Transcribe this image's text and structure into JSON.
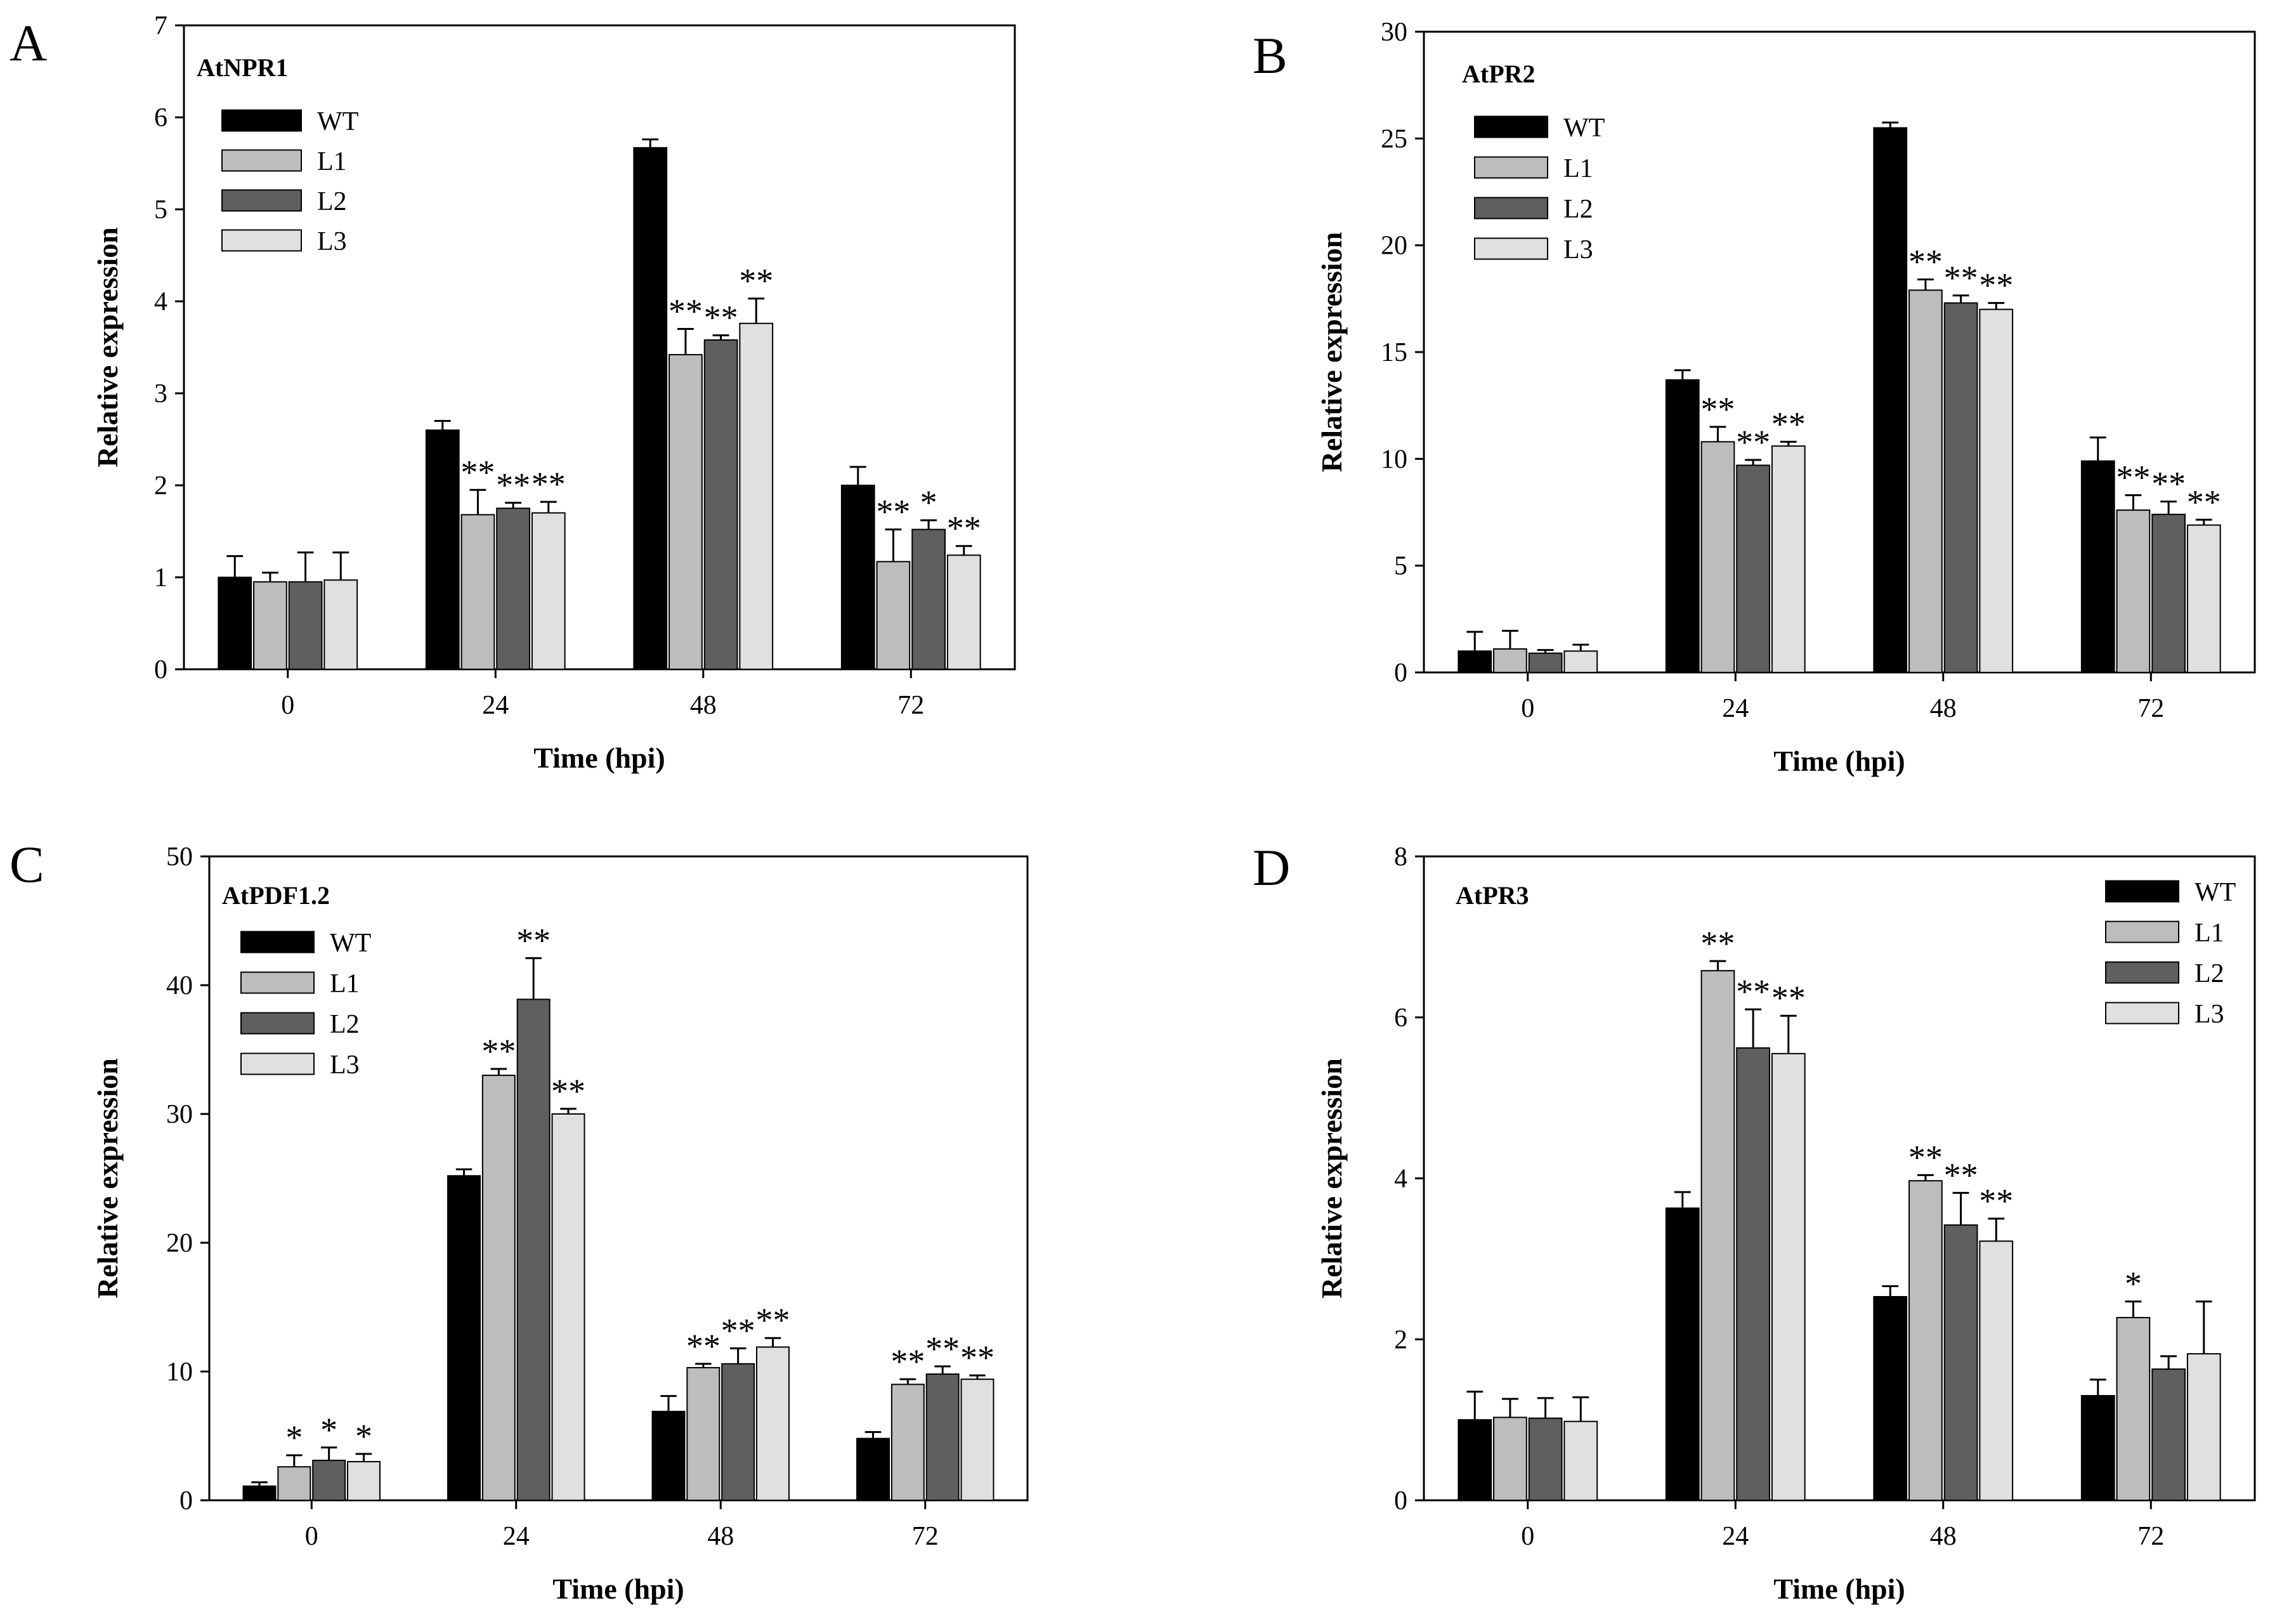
{
  "figure": {
    "panel_letters": [
      "A",
      "B",
      "C",
      "D"
    ]
  },
  "chart_data": [
    {
      "type": "bar",
      "panel": "A",
      "title": "AtNPR1",
      "xlabel": "Time (hpi)",
      "ylabel": "Relative expression",
      "categories": [
        "0",
        "24",
        "48",
        "72"
      ],
      "ylim": [
        0,
        7
      ],
      "yticks": [
        "0",
        "1",
        "2",
        "3",
        "4",
        "5",
        "6",
        "7"
      ],
      "legend_position": "top-left",
      "series": [
        {
          "name": "WT",
          "color": "#000000",
          "values": [
            1.0,
            2.6,
            5.67,
            2.0
          ],
          "errors": [
            0.23,
            0.1,
            0.09,
            0.2
          ],
          "sig": [
            "",
            "",
            "",
            ""
          ]
        },
        {
          "name": "L1",
          "color": "#bdbdbd",
          "values": [
            0.95,
            1.68,
            3.42,
            1.17
          ],
          "errors": [
            0.1,
            0.27,
            0.28,
            0.35
          ],
          "sig": [
            "",
            "**",
            "**",
            "**"
          ]
        },
        {
          "name": "L2",
          "color": "#5f5f5f",
          "values": [
            0.95,
            1.75,
            3.58,
            1.52
          ],
          "errors": [
            0.32,
            0.06,
            0.05,
            0.1
          ],
          "sig": [
            "",
            "**",
            "**",
            "*"
          ]
        },
        {
          "name": "L3",
          "color": "#e0e0e0",
          "values": [
            0.97,
            1.7,
            3.76,
            1.24
          ],
          "errors": [
            0.3,
            0.12,
            0.27,
            0.1
          ],
          "sig": [
            "",
            "**",
            "**",
            "**"
          ]
        }
      ]
    },
    {
      "type": "bar",
      "panel": "B",
      "title": "AtPR2",
      "xlabel": "Time (hpi)",
      "ylabel": "Relative expression",
      "categories": [
        "0",
        "24",
        "48",
        "72"
      ],
      "ylim": [
        0,
        30
      ],
      "yticks": [
        "0",
        "5",
        "10",
        "15",
        "20",
        "25",
        "30"
      ],
      "legend_position": "top-left",
      "series": [
        {
          "name": "WT",
          "color": "#000000",
          "values": [
            1.0,
            13.7,
            25.5,
            9.9
          ],
          "errors": [
            0.9,
            0.45,
            0.25,
            1.1
          ],
          "sig": [
            "",
            "",
            "",
            ""
          ]
        },
        {
          "name": "L1",
          "color": "#bdbdbd",
          "values": [
            1.1,
            10.8,
            17.9,
            7.6
          ],
          "errors": [
            0.85,
            0.7,
            0.5,
            0.7
          ],
          "sig": [
            "",
            "**",
            "**",
            "**"
          ]
        },
        {
          "name": "L2",
          "color": "#5f5f5f",
          "values": [
            0.9,
            9.7,
            17.3,
            7.4
          ],
          "errors": [
            0.15,
            0.25,
            0.35,
            0.6
          ],
          "sig": [
            "",
            "**",
            "**",
            "**"
          ]
        },
        {
          "name": "L3",
          "color": "#e0e0e0",
          "values": [
            1.0,
            10.6,
            17.0,
            6.9
          ],
          "errors": [
            0.3,
            0.2,
            0.3,
            0.25
          ],
          "sig": [
            "",
            "**",
            "**",
            "**"
          ]
        }
      ]
    },
    {
      "type": "bar",
      "panel": "C",
      "title": "AtPDF1.2",
      "xlabel": "Time (hpi)",
      "ylabel": "Relative expression",
      "categories": [
        "0",
        "24",
        "48",
        "72"
      ],
      "ylim": [
        0,
        50
      ],
      "yticks": [
        "0",
        "10",
        "20",
        "30",
        "40",
        "50"
      ],
      "legend_position": "top-left",
      "series": [
        {
          "name": "WT",
          "color": "#000000",
          "values": [
            1.1,
            25.2,
            6.9,
            4.8
          ],
          "errors": [
            0.3,
            0.5,
            1.2,
            0.5
          ],
          "sig": [
            "",
            "",
            "",
            ""
          ]
        },
        {
          "name": "L1",
          "color": "#bdbdbd",
          "values": [
            2.6,
            33.0,
            10.3,
            9.0
          ],
          "errors": [
            0.9,
            0.5,
            0.3,
            0.4
          ],
          "sig": [
            "*",
            "**",
            "**",
            "**"
          ]
        },
        {
          "name": "L2",
          "color": "#5f5f5f",
          "values": [
            3.1,
            38.9,
            10.6,
            9.8
          ],
          "errors": [
            1.0,
            3.2,
            1.2,
            0.6
          ],
          "sig": [
            "*",
            "**",
            "**",
            "**"
          ]
        },
        {
          "name": "L3",
          "color": "#e0e0e0",
          "values": [
            3.0,
            30.0,
            11.9,
            9.4
          ],
          "errors": [
            0.6,
            0.4,
            0.7,
            0.3
          ],
          "sig": [
            "*",
            "**",
            "**",
            "**"
          ]
        }
      ]
    },
    {
      "type": "bar",
      "panel": "D",
      "title": "AtPR3",
      "xlabel": "Time (hpi)",
      "ylabel": "Relative expression",
      "categories": [
        "0",
        "24",
        "48",
        "72"
      ],
      "ylim": [
        0,
        8
      ],
      "yticks": [
        "0",
        "2",
        "4",
        "6",
        "8"
      ],
      "legend_position": "top-right",
      "series": [
        {
          "name": "WT",
          "color": "#000000",
          "values": [
            1.0,
            3.63,
            2.53,
            1.3
          ],
          "errors": [
            0.35,
            0.2,
            0.13,
            0.2
          ],
          "sig": [
            "",
            "",
            "",
            ""
          ]
        },
        {
          "name": "L1",
          "color": "#bdbdbd",
          "values": [
            1.03,
            6.58,
            3.97,
            2.27
          ],
          "errors": [
            0.23,
            0.12,
            0.07,
            0.2
          ],
          "sig": [
            "",
            "**",
            "**",
            "*"
          ]
        },
        {
          "name": "L2",
          "color": "#5f5f5f",
          "values": [
            1.02,
            5.62,
            3.42,
            1.63
          ],
          "errors": [
            0.25,
            0.48,
            0.4,
            0.16
          ],
          "sig": [
            "",
            "**",
            "**",
            ""
          ]
        },
        {
          "name": "L3",
          "color": "#e0e0e0",
          "values": [
            0.98,
            5.55,
            3.22,
            1.82
          ],
          "errors": [
            0.3,
            0.47,
            0.28,
            0.65
          ],
          "sig": [
            "",
            "**",
            "**",
            ""
          ]
        }
      ]
    }
  ]
}
